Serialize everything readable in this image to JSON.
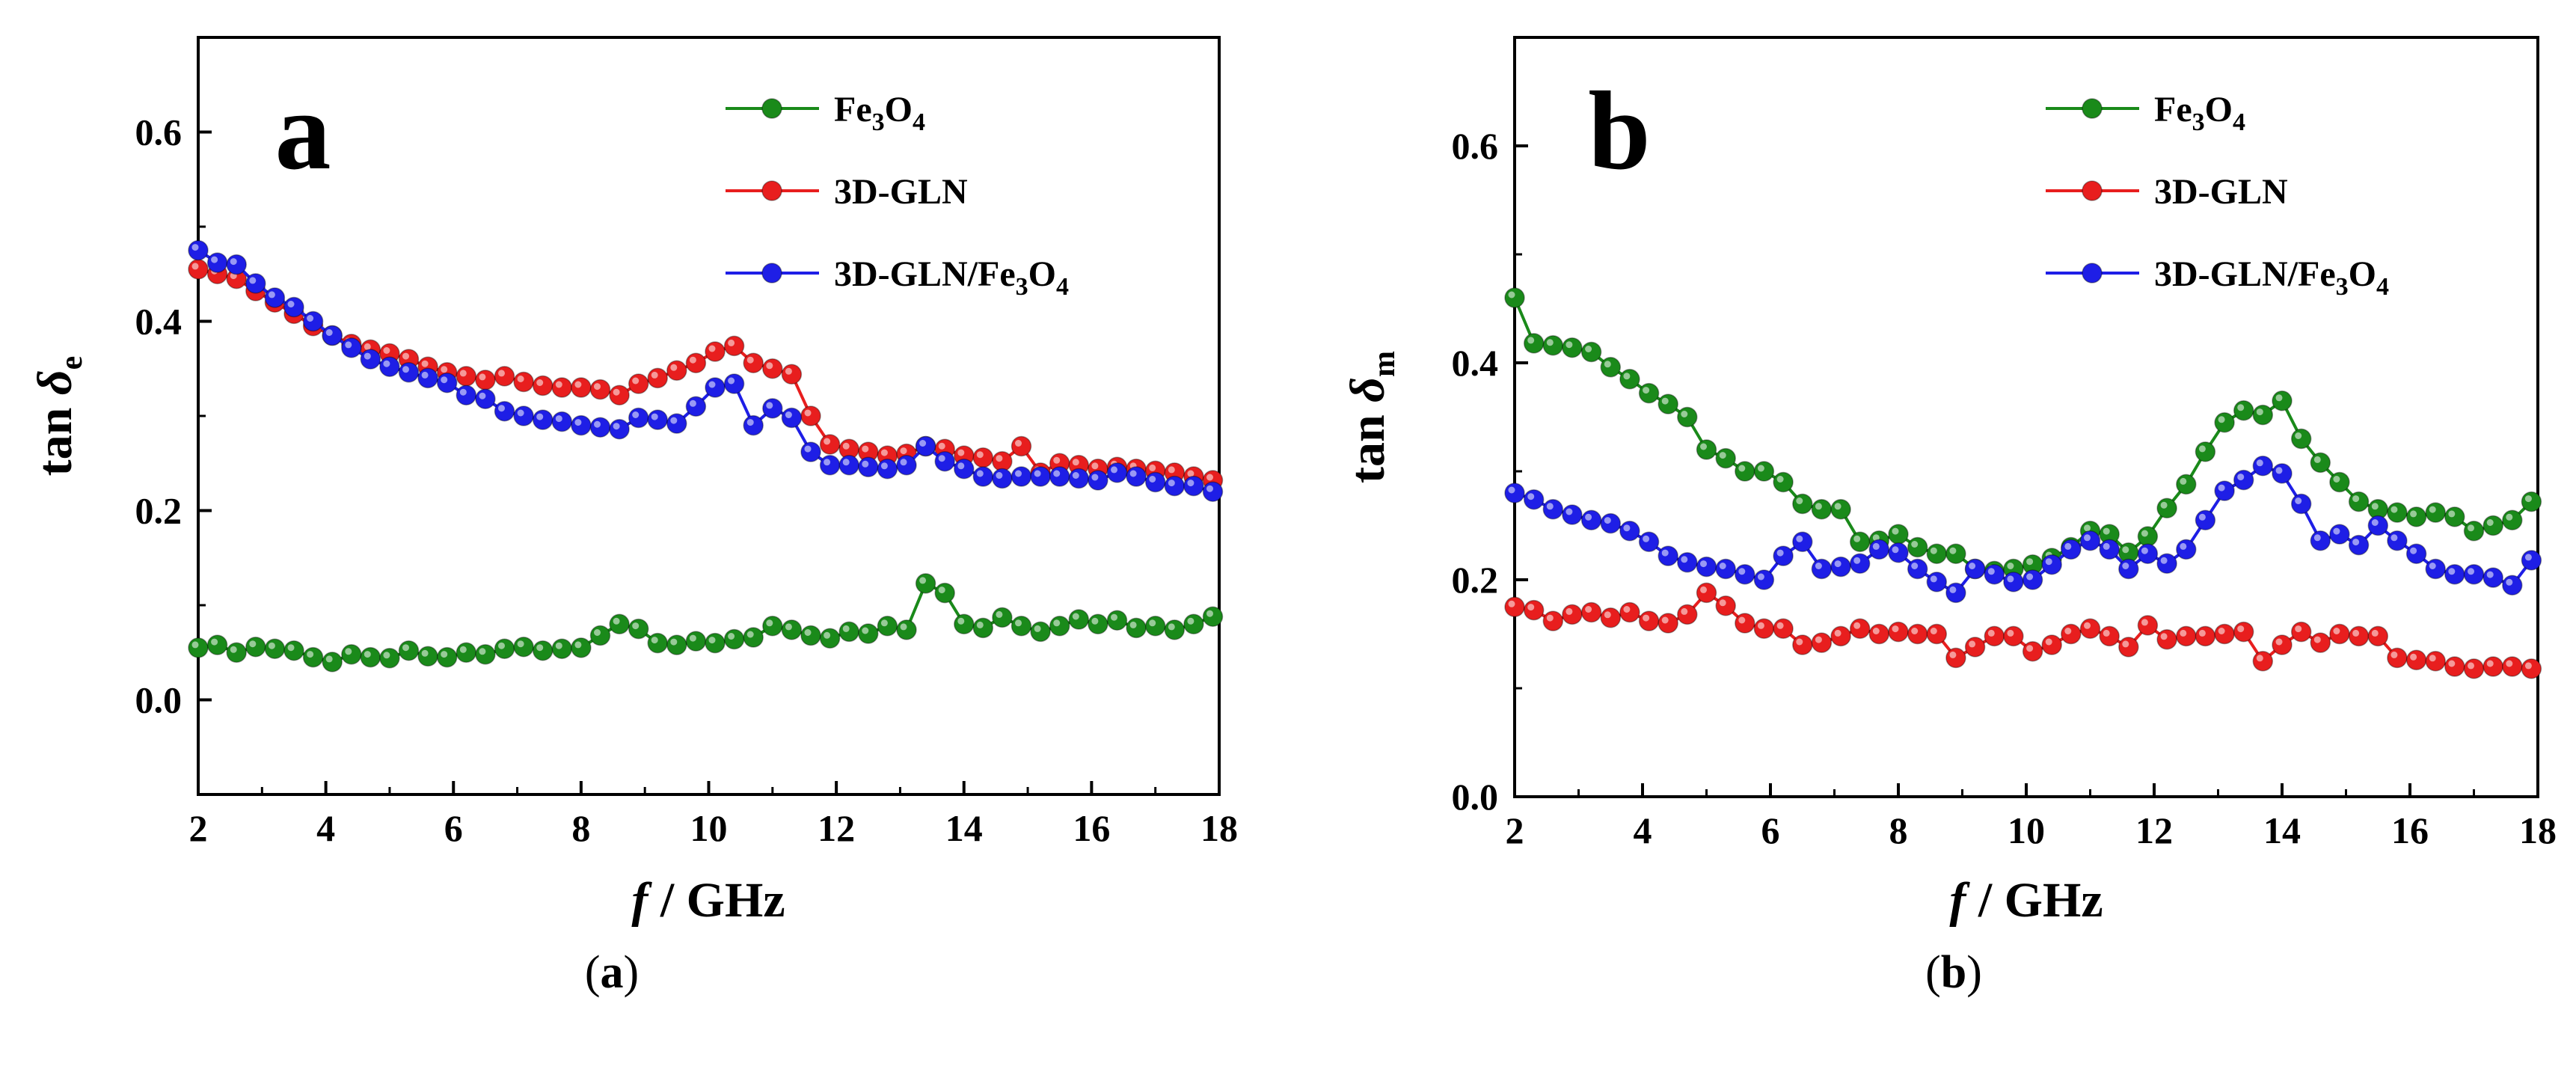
{
  "chart_data": [
    {
      "type": "line",
      "panel_label": "a",
      "caption": {
        "open": "(",
        "letter": "a",
        "close": ")"
      },
      "xlabel": {
        "f": "f",
        "rest": " / GHz"
      },
      "ylabel": {
        "main": "tan ",
        "symbol": "δ",
        "sub": "e"
      },
      "xlim": [
        2,
        18
      ],
      "ylim": [
        -0.1,
        0.7
      ],
      "xticks": [
        "2",
        "4",
        "6",
        "8",
        "10",
        "12",
        "14",
        "16",
        "18"
      ],
      "xtick_values": [
        2,
        4,
        6,
        8,
        10,
        12,
        14,
        16,
        18
      ],
      "yticks": [
        "0.0",
        "0.2",
        "0.4",
        "0.6"
      ],
      "ytick_values": [
        0.0,
        0.2,
        0.4,
        0.6
      ],
      "legend_position": "top-right",
      "series": [
        {
          "name": "Fe3O4",
          "label": {
            "base": "Fe",
            "s1": "3",
            "mid": "O",
            "s2": "4",
            "tail": ""
          },
          "color": "#1a8a1a",
          "x": [
            2.0,
            2.3,
            2.6,
            2.9,
            3.2,
            3.5,
            3.8,
            4.1,
            4.4,
            4.7,
            5.0,
            5.3,
            5.6,
            5.9,
            6.2,
            6.5,
            6.8,
            7.1,
            7.4,
            7.7,
            8.0,
            8.3,
            8.6,
            8.9,
            9.2,
            9.5,
            9.8,
            10.1,
            10.4,
            10.7,
            11.0,
            11.3,
            11.6,
            11.9,
            12.2,
            12.5,
            12.8,
            13.1,
            13.4,
            13.7,
            14.0,
            14.3,
            14.6,
            14.9,
            15.2,
            15.5,
            15.8,
            16.1,
            16.4,
            16.7,
            17.0,
            17.3,
            17.6,
            17.9
          ],
          "y": [
            0.055,
            0.058,
            0.05,
            0.056,
            0.054,
            0.052,
            0.045,
            0.04,
            0.048,
            0.045,
            0.044,
            0.052,
            0.046,
            0.045,
            0.05,
            0.048,
            0.054,
            0.056,
            0.052,
            0.054,
            0.055,
            0.068,
            0.08,
            0.075,
            0.06,
            0.058,
            0.062,
            0.06,
            0.064,
            0.066,
            0.078,
            0.074,
            0.068,
            0.065,
            0.072,
            0.07,
            0.078,
            0.074,
            0.123,
            0.113,
            0.08,
            0.076,
            0.087,
            0.078,
            0.072,
            0.078,
            0.085,
            0.08,
            0.084,
            0.076,
            0.078,
            0.074,
            0.08,
            0.088
          ]
        },
        {
          "name": "3D-GLN",
          "label": {
            "base": "3D-GLN",
            "s1": "",
            "mid": "",
            "s2": "",
            "tail": ""
          },
          "color": "#e81e1e",
          "x": [
            2.0,
            2.3,
            2.6,
            2.9,
            3.2,
            3.5,
            3.8,
            4.1,
            4.4,
            4.7,
            5.0,
            5.3,
            5.6,
            5.9,
            6.2,
            6.5,
            6.8,
            7.1,
            7.4,
            7.7,
            8.0,
            8.3,
            8.6,
            8.9,
            9.2,
            9.5,
            9.8,
            10.1,
            10.4,
            10.7,
            11.0,
            11.3,
            11.6,
            11.9,
            12.2,
            12.5,
            12.8,
            13.1,
            13.4,
            13.7,
            14.0,
            14.3,
            14.6,
            14.9,
            15.2,
            15.5,
            15.8,
            16.1,
            16.4,
            16.7,
            17.0,
            17.3,
            17.6,
            17.9
          ],
          "y": [
            0.455,
            0.45,
            0.445,
            0.432,
            0.42,
            0.408,
            0.395,
            0.385,
            0.376,
            0.37,
            0.366,
            0.36,
            0.352,
            0.346,
            0.342,
            0.338,
            0.342,
            0.336,
            0.332,
            0.33,
            0.33,
            0.328,
            0.322,
            0.334,
            0.34,
            0.348,
            0.356,
            0.368,
            0.374,
            0.356,
            0.35,
            0.344,
            0.3,
            0.27,
            0.265,
            0.262,
            0.258,
            0.26,
            0.268,
            0.265,
            0.258,
            0.256,
            0.252,
            0.268,
            0.24,
            0.25,
            0.248,
            0.244,
            0.246,
            0.244,
            0.242,
            0.24,
            0.236,
            0.232
          ]
        },
        {
          "name": "3D-GLN/Fe3O4",
          "label": {
            "base": "3D-GLN/Fe",
            "s1": "3",
            "mid": "O",
            "s2": "4",
            "tail": ""
          },
          "color": "#1e1ee6",
          "x": [
            2.0,
            2.3,
            2.6,
            2.9,
            3.2,
            3.5,
            3.8,
            4.1,
            4.4,
            4.7,
            5.0,
            5.3,
            5.6,
            5.9,
            6.2,
            6.5,
            6.8,
            7.1,
            7.4,
            7.7,
            8.0,
            8.3,
            8.6,
            8.9,
            9.2,
            9.5,
            9.8,
            10.1,
            10.4,
            10.7,
            11.0,
            11.3,
            11.6,
            11.9,
            12.2,
            12.5,
            12.8,
            13.1,
            13.4,
            13.7,
            14.0,
            14.3,
            14.6,
            14.9,
            15.2,
            15.5,
            15.8,
            16.1,
            16.4,
            16.7,
            17.0,
            17.3,
            17.6,
            17.9
          ],
          "y": [
            0.475,
            0.462,
            0.46,
            0.44,
            0.425,
            0.415,
            0.4,
            0.385,
            0.372,
            0.36,
            0.352,
            0.346,
            0.34,
            0.335,
            0.322,
            0.318,
            0.305,
            0.3,
            0.296,
            0.294,
            0.29,
            0.288,
            0.286,
            0.298,
            0.296,
            0.292,
            0.31,
            0.33,
            0.334,
            0.29,
            0.308,
            0.298,
            0.262,
            0.248,
            0.248,
            0.246,
            0.244,
            0.248,
            0.268,
            0.252,
            0.244,
            0.236,
            0.234,
            0.236,
            0.236,
            0.236,
            0.234,
            0.232,
            0.24,
            0.236,
            0.23,
            0.226,
            0.226,
            0.22
          ]
        }
      ]
    },
    {
      "type": "line",
      "panel_label": "b",
      "caption": {
        "open": "(",
        "letter": "b",
        "close": ")"
      },
      "xlabel": {
        "f": "f",
        "rest": " / GHz"
      },
      "ylabel": {
        "main": "tan ",
        "symbol": "δ",
        "sub": "m"
      },
      "xlim": [
        2,
        18
      ],
      "ylim": [
        0.0,
        0.7
      ],
      "xticks": [
        "2",
        "4",
        "6",
        "8",
        "10",
        "12",
        "14",
        "16",
        "18"
      ],
      "xtick_values": [
        2,
        4,
        6,
        8,
        10,
        12,
        14,
        16,
        18
      ],
      "yticks": [
        "0.0",
        "0.2",
        "0.4",
        "0.6"
      ],
      "ytick_values": [
        0.0,
        0.2,
        0.4,
        0.6
      ],
      "legend_position": "top-right",
      "series": [
        {
          "name": "Fe3O4",
          "label": {
            "base": "Fe",
            "s1": "3",
            "mid": "O",
            "s2": "4",
            "tail": ""
          },
          "color": "#1a8a1a",
          "x": [
            2.0,
            2.3,
            2.6,
            2.9,
            3.2,
            3.5,
            3.8,
            4.1,
            4.4,
            4.7,
            5.0,
            5.3,
            5.6,
            5.9,
            6.2,
            6.5,
            6.8,
            7.1,
            7.4,
            7.7,
            8.0,
            8.3,
            8.6,
            8.9,
            9.2,
            9.5,
            9.8,
            10.1,
            10.4,
            10.7,
            11.0,
            11.3,
            11.6,
            11.9,
            12.2,
            12.5,
            12.8,
            13.1,
            13.4,
            13.7,
            14.0,
            14.3,
            14.6,
            14.9,
            15.2,
            15.5,
            15.8,
            16.1,
            16.4,
            16.7,
            17.0,
            17.3,
            17.6,
            17.9
          ],
          "y": [
            0.46,
            0.418,
            0.416,
            0.414,
            0.41,
            0.396,
            0.385,
            0.372,
            0.362,
            0.35,
            0.32,
            0.312,
            0.3,
            0.3,
            0.29,
            0.27,
            0.265,
            0.265,
            0.235,
            0.236,
            0.242,
            0.23,
            0.224,
            0.224,
            0.21,
            0.208,
            0.21,
            0.214,
            0.22,
            0.23,
            0.245,
            0.242,
            0.225,
            0.24,
            0.266,
            0.288,
            0.318,
            0.345,
            0.356,
            0.352,
            0.365,
            0.33,
            0.308,
            0.29,
            0.272,
            0.265,
            0.262,
            0.258,
            0.262,
            0.258,
            0.245,
            0.25,
            0.255,
            0.272
          ]
        },
        {
          "name": "3D-GLN",
          "label": {
            "base": "3D-GLN",
            "s1": "",
            "mid": "",
            "s2": "",
            "tail": ""
          },
          "color": "#e81e1e",
          "x": [
            2.0,
            2.3,
            2.6,
            2.9,
            3.2,
            3.5,
            3.8,
            4.1,
            4.4,
            4.7,
            5.0,
            5.3,
            5.6,
            5.9,
            6.2,
            6.5,
            6.8,
            7.1,
            7.4,
            7.7,
            8.0,
            8.3,
            8.6,
            8.9,
            9.2,
            9.5,
            9.8,
            10.1,
            10.4,
            10.7,
            11.0,
            11.3,
            11.6,
            11.9,
            12.2,
            12.5,
            12.8,
            13.1,
            13.4,
            13.7,
            14.0,
            14.3,
            14.6,
            14.9,
            15.2,
            15.5,
            15.8,
            16.1,
            16.4,
            16.7,
            17.0,
            17.3,
            17.6,
            17.9
          ],
          "y": [
            0.175,
            0.172,
            0.162,
            0.168,
            0.17,
            0.165,
            0.17,
            0.162,
            0.16,
            0.168,
            0.188,
            0.176,
            0.16,
            0.155,
            0.155,
            0.14,
            0.142,
            0.148,
            0.155,
            0.15,
            0.152,
            0.15,
            0.15,
            0.128,
            0.138,
            0.148,
            0.148,
            0.134,
            0.14,
            0.15,
            0.155,
            0.148,
            0.138,
            0.158,
            0.145,
            0.148,
            0.148,
            0.15,
            0.152,
            0.125,
            0.14,
            0.152,
            0.142,
            0.15,
            0.148,
            0.148,
            0.128,
            0.126,
            0.125,
            0.12,
            0.118,
            0.12,
            0.12,
            0.118
          ]
        },
        {
          "name": "3D-GLN/Fe3O4",
          "label": {
            "base": "3D-GLN/Fe",
            "s1": "3",
            "mid": "O",
            "s2": "4",
            "tail": ""
          },
          "color": "#1e1ee6",
          "x": [
            2.0,
            2.3,
            2.6,
            2.9,
            3.2,
            3.5,
            3.8,
            4.1,
            4.4,
            4.7,
            5.0,
            5.3,
            5.6,
            5.9,
            6.2,
            6.5,
            6.8,
            7.1,
            7.4,
            7.7,
            8.0,
            8.3,
            8.6,
            8.9,
            9.2,
            9.5,
            9.8,
            10.1,
            10.4,
            10.7,
            11.0,
            11.3,
            11.6,
            11.9,
            12.2,
            12.5,
            12.8,
            13.1,
            13.4,
            13.7,
            14.0,
            14.3,
            14.6,
            14.9,
            15.2,
            15.5,
            15.8,
            16.1,
            16.4,
            16.7,
            17.0,
            17.3,
            17.6,
            17.9
          ],
          "y": [
            0.28,
            0.274,
            0.265,
            0.26,
            0.255,
            0.252,
            0.245,
            0.235,
            0.222,
            0.216,
            0.212,
            0.21,
            0.205,
            0.2,
            0.222,
            0.235,
            0.21,
            0.212,
            0.215,
            0.228,
            0.225,
            0.21,
            0.198,
            0.188,
            0.21,
            0.205,
            0.198,
            0.2,
            0.214,
            0.228,
            0.236,
            0.228,
            0.21,
            0.224,
            0.215,
            0.228,
            0.255,
            0.282,
            0.292,
            0.305,
            0.298,
            0.27,
            0.236,
            0.242,
            0.232,
            0.25,
            0.236,
            0.224,
            0.21,
            0.205,
            0.205,
            0.202,
            0.195,
            0.218
          ]
        }
      ]
    }
  ]
}
